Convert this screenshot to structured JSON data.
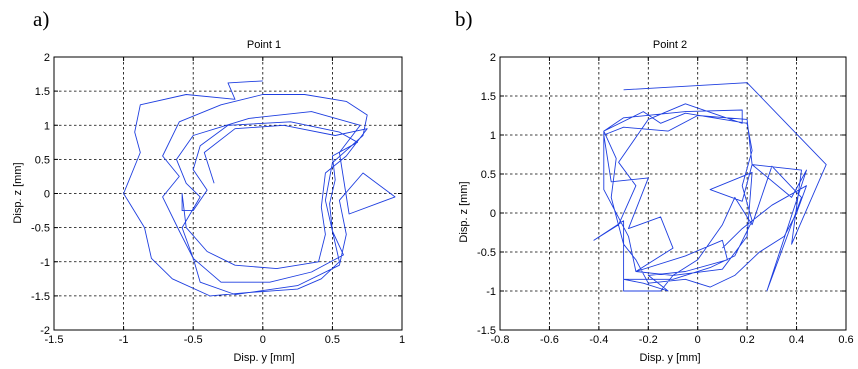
{
  "chart_data": [
    {
      "type": "line",
      "panel_letter": "a)",
      "title": "Point 1",
      "xlabel": "Disp. y [mm]",
      "ylabel": "Disp. z [mm]",
      "xlim": [
        -1.5,
        1
      ],
      "ylim": [
        -2,
        2
      ],
      "xticks": [
        "-1.5",
        "-1",
        "-0.5",
        "0",
        "0.5",
        "1"
      ],
      "yticks": [
        "-2",
        "-1.5",
        "-1",
        "-0.5",
        "0",
        "0.5",
        "1",
        "1.5",
        "2"
      ],
      "grid": true,
      "line_color": "#1f3fe0",
      "series": [
        {
          "points": [
            [
              0.0,
              1.65
            ],
            [
              -0.25,
              1.62
            ],
            [
              -0.2,
              1.38
            ],
            [
              -0.55,
              1.45
            ],
            [
              -0.88,
              1.3
            ],
            [
              -0.92,
              0.9
            ],
            [
              -0.88,
              0.6
            ],
            [
              -1.0,
              0.0
            ],
            [
              -0.85,
              -0.5
            ],
            [
              -0.8,
              -0.95
            ],
            [
              -0.65,
              -1.25
            ],
            [
              -0.38,
              -1.5
            ],
            [
              -0.1,
              -1.45
            ],
            [
              0.25,
              -1.4
            ],
            [
              0.42,
              -1.25
            ],
            [
              0.55,
              -1.0
            ],
            [
              0.5,
              -0.55
            ],
            [
              0.45,
              -0.1
            ],
            [
              0.5,
              0.45
            ],
            [
              0.72,
              0.85
            ],
            [
              0.75,
              1.15
            ],
            [
              0.6,
              1.35
            ],
            [
              0.3,
              1.45
            ],
            [
              0.0,
              1.45
            ],
            [
              -0.3,
              1.3
            ],
            [
              -0.6,
              1.05
            ],
            [
              -0.72,
              0.55
            ],
            [
              -0.6,
              0.25
            ],
            [
              -0.72,
              -0.05
            ],
            [
              -0.6,
              -0.55
            ],
            [
              -0.5,
              -0.95
            ],
            [
              -0.45,
              -1.3
            ],
            [
              -0.2,
              -1.48
            ],
            [
              0.25,
              -1.35
            ],
            [
              0.55,
              -1.05
            ],
            [
              0.6,
              -0.6
            ],
            [
              0.55,
              -0.1
            ],
            [
              0.72,
              0.3
            ],
            [
              0.95,
              -0.05
            ],
            [
              0.62,
              -0.3
            ],
            [
              0.55,
              0.6
            ],
            [
              0.7,
              1.0
            ],
            [
              0.35,
              1.2
            ],
            [
              -0.1,
              1.1
            ],
            [
              -0.5,
              0.85
            ],
            [
              -0.62,
              0.5
            ],
            [
              -0.55,
              0.15
            ],
            [
              -0.45,
              -0.05
            ],
            [
              -0.58,
              -0.5
            ],
            [
              -0.5,
              -0.95
            ],
            [
              -0.3,
              -1.3
            ],
            [
              0.05,
              -1.3
            ],
            [
              0.35,
              -1.15
            ],
            [
              0.58,
              -0.9
            ],
            [
              0.5,
              -0.55
            ],
            [
              0.48,
              -0.15
            ],
            [
              0.52,
              0.2
            ],
            [
              0.5,
              0.55
            ],
            [
              0.68,
              0.75
            ],
            [
              0.55,
              0.9
            ],
            [
              0.2,
              1.05
            ],
            [
              -0.25,
              1.0
            ],
            [
              -0.45,
              0.7
            ],
            [
              -0.5,
              0.35
            ],
            [
              -0.4,
              0.05
            ],
            [
              -0.5,
              -0.25
            ],
            [
              -0.58,
              -0.25
            ],
            [
              -0.58,
              0.0
            ],
            [
              -0.55,
              -0.5
            ],
            [
              -0.4,
              -0.85
            ],
            [
              -0.2,
              -1.05
            ],
            [
              0.1,
              -1.1
            ],
            [
              0.4,
              -1.0
            ],
            [
              0.45,
              -0.6
            ],
            [
              0.42,
              -0.2
            ],
            [
              0.45,
              0.3
            ],
            [
              0.6,
              0.55
            ],
            [
              0.75,
              0.95
            ],
            [
              0.52,
              0.85
            ],
            [
              0.15,
              1.0
            ],
            [
              -0.2,
              0.95
            ],
            [
              -0.42,
              0.6
            ],
            [
              -0.35,
              0.15
            ]
          ]
        }
      ]
    },
    {
      "type": "line",
      "panel_letter": "b)",
      "title": "Point 2",
      "xlabel": "Disp. y [mm]",
      "ylabel": "Disp. z [mm]",
      "xlim": [
        -0.8,
        0.6
      ],
      "ylim": [
        -1.5,
        2
      ],
      "xticks": [
        "-0.8",
        "-0.6",
        "-0.4",
        "-0.2",
        "0",
        "0.2",
        "0.4",
        "0.6"
      ],
      "yticks": [
        "-1.5",
        "-1",
        "-0.5",
        "0",
        "0.5",
        "1",
        "1.5",
        "2"
      ],
      "grid": true,
      "line_color": "#1f3fe0",
      "series": [
        {
          "points": [
            [
              -0.3,
              1.58
            ],
            [
              0.2,
              1.67
            ],
            [
              0.52,
              0.62
            ],
            [
              0.38,
              -0.4
            ],
            [
              0.42,
              0.55
            ],
            [
              0.22,
              0.62
            ],
            [
              0.18,
              0.15
            ],
            [
              0.05,
              0.3
            ],
            [
              0.22,
              0.52
            ],
            [
              0.2,
              -0.3
            ],
            [
              0.1,
              -0.72
            ],
            [
              -0.1,
              -0.8
            ],
            [
              -0.25,
              -0.75
            ],
            [
              -0.28,
              -0.3
            ],
            [
              -0.38,
              0.3
            ],
            [
              -0.38,
              1.05
            ],
            [
              -0.3,
              1.22
            ],
            [
              -0.05,
              1.3
            ],
            [
              0.18,
              1.32
            ],
            [
              0.18,
              1.15
            ],
            [
              -0.05,
              1.4
            ],
            [
              -0.2,
              1.2
            ],
            [
              -0.32,
              0.65
            ],
            [
              -0.25,
              0.35
            ],
            [
              -0.32,
              -0.15
            ],
            [
              -0.42,
              -0.35
            ],
            [
              -0.3,
              -0.1
            ],
            [
              -0.3,
              -1.0
            ],
            [
              -0.15,
              -1.0
            ],
            [
              -0.1,
              -0.8
            ],
            [
              0.0,
              -0.6
            ],
            [
              0.1,
              -0.15
            ],
            [
              0.15,
              0.2
            ],
            [
              0.22,
              -0.15
            ],
            [
              0.3,
              0.6
            ],
            [
              0.42,
              0.2
            ],
            [
              0.28,
              -1.0
            ],
            [
              0.44,
              0.55
            ],
            [
              0.38,
              0.2
            ],
            [
              0.22,
              0.62
            ],
            [
              0.2,
              1.2
            ],
            [
              0.0,
              1.25
            ],
            [
              -0.12,
              1.05
            ],
            [
              -0.3,
              1.1
            ],
            [
              -0.38,
              1.0
            ],
            [
              -0.35,
              0.4
            ],
            [
              -0.2,
              0.45
            ],
            [
              -0.28,
              -0.2
            ],
            [
              -0.15,
              -0.05
            ],
            [
              -0.1,
              -0.45
            ],
            [
              -0.25,
              -0.75
            ],
            [
              -0.05,
              -0.55
            ],
            [
              0.1,
              -0.35
            ],
            [
              0.12,
              -0.6
            ],
            [
              -0.05,
              -0.75
            ],
            [
              -0.2,
              -0.8
            ],
            [
              -0.12,
              -1.0
            ],
            [
              -0.22,
              -0.9
            ],
            [
              -0.3,
              -0.85
            ],
            [
              -0.1,
              -0.85
            ],
            [
              0.05,
              -0.7
            ],
            [
              0.15,
              -0.55
            ],
            [
              0.22,
              -0.1
            ],
            [
              0.18,
              0.35
            ],
            [
              0.22,
              0.8
            ],
            [
              0.2,
              1.15
            ],
            [
              -0.05,
              1.28
            ],
            [
              -0.15,
              1.15
            ],
            [
              -0.22,
              1.3
            ],
            [
              -0.38,
              1.05
            ],
            [
              -0.33,
              0.7
            ],
            [
              -0.35,
              0.2
            ],
            [
              -0.3,
              -0.4
            ],
            [
              -0.25,
              -0.6
            ],
            [
              -0.2,
              -0.9
            ],
            [
              -0.05,
              -0.85
            ],
            [
              0.05,
              -0.95
            ],
            [
              0.15,
              -0.8
            ],
            [
              0.25,
              -0.5
            ],
            [
              0.35,
              -0.3
            ],
            [
              0.4,
              0.0
            ],
            [
              0.44,
              0.35
            ],
            [
              0.3,
              0.1
            ],
            [
              0.18,
              -0.2
            ],
            [
              0.1,
              -0.45
            ]
          ]
        }
      ]
    }
  ]
}
